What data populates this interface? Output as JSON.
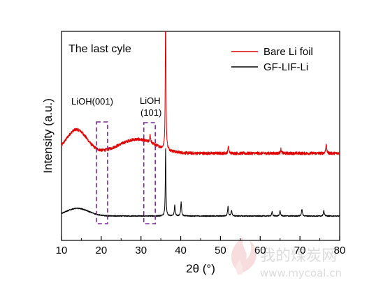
{
  "chart_data": {
    "type": "line",
    "panel_label": "The last cyle",
    "xlabel": "2θ (°)",
    "ylabel": "Intensity (a.u.)",
    "xlim": [
      10,
      80
    ],
    "xticks": [
      10,
      20,
      30,
      40,
      50,
      60,
      70,
      80
    ],
    "y_axis_ticks_labeled": false,
    "legend": {
      "placement": "top-right"
    },
    "series": [
      {
        "name": "Bare Li foil",
        "color": "#e00000",
        "baseline_offset": 0.45,
        "broad_humps": [
          {
            "center": 13.8,
            "height": 0.17,
            "width": 2.6
          },
          {
            "center": 29.0,
            "height": 0.1,
            "width": 4.5
          }
        ],
        "peaks": [
          {
            "x": 32.3,
            "height": 0.06
          },
          {
            "x": 36.2,
            "height": 1.2
          },
          {
            "x": 52.0,
            "height": 0.05
          },
          {
            "x": 65.2,
            "height": 0.03
          },
          {
            "x": 76.6,
            "height": 0.07
          }
        ]
      },
      {
        "name": "GF-LIF-Li",
        "color": "#000000",
        "baseline_offset": 0.0,
        "broad_humps": [
          {
            "center": 14.0,
            "height": 0.055,
            "width": 2.8
          }
        ],
        "peaks": [
          {
            "x": 36.2,
            "height": 0.5
          },
          {
            "x": 38.5,
            "height": 0.08
          },
          {
            "x": 40.1,
            "height": 0.1
          },
          {
            "x": 51.9,
            "height": 0.07
          },
          {
            "x": 52.8,
            "height": 0.04
          },
          {
            "x": 63.0,
            "height": 0.03
          },
          {
            "x": 65.0,
            "height": 0.04
          },
          {
            "x": 70.5,
            "height": 0.05
          },
          {
            "x": 76.0,
            "height": 0.04
          }
        ]
      }
    ],
    "annotations": [
      {
        "text": "LiOH(001)",
        "x_range": [
          18.8,
          21.6
        ]
      },
      {
        "text": "LiOH",
        "text2": "(101)",
        "x_range": [
          30.7,
          33.6
        ]
      }
    ],
    "box_color": "#7b2a9b"
  },
  "watermark": {
    "logo_text": "我的煤炭网",
    "url_text": "www.mycoal.cn"
  }
}
